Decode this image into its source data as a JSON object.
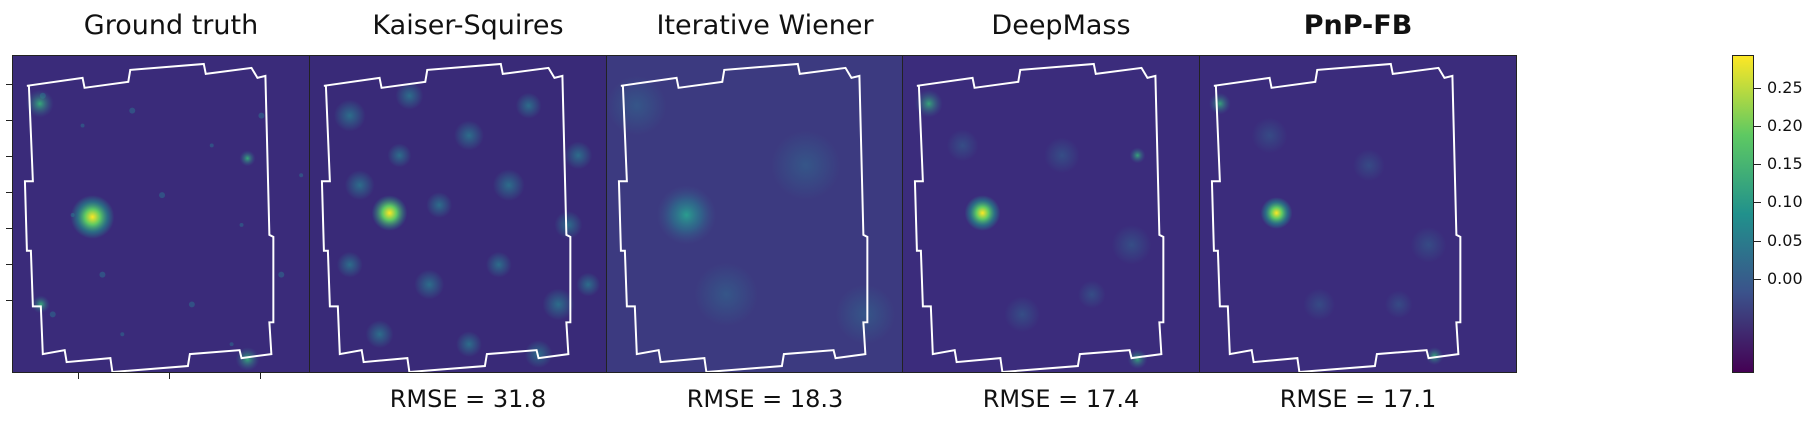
{
  "panels": [
    {
      "title": "Ground truth",
      "metric": "",
      "bold": false
    },
    {
      "title": "Kaiser-Squires",
      "metric": "RMSE = 31.8",
      "bold": false
    },
    {
      "title": "Iterative Wiener",
      "metric": "RMSE = 18.3",
      "bold": false
    },
    {
      "title": "DeepMass",
      "metric": "RMSE = 17.4",
      "bold": false
    },
    {
      "title": "PnP-FB",
      "metric": "RMSE = 17.1",
      "bold": true
    }
  ],
  "colorbar": {
    "ticks": [
      "0.25",
      "0.20",
      "0.15",
      "0.10",
      "0.05",
      "0.00"
    ],
    "colors": [
      "#440154",
      "#3b528b",
      "#21918c",
      "#5ec962",
      "#fde725"
    ]
  },
  "colors": {
    "background_map": "#3b2a78",
    "outline": "#ffffff"
  }
}
